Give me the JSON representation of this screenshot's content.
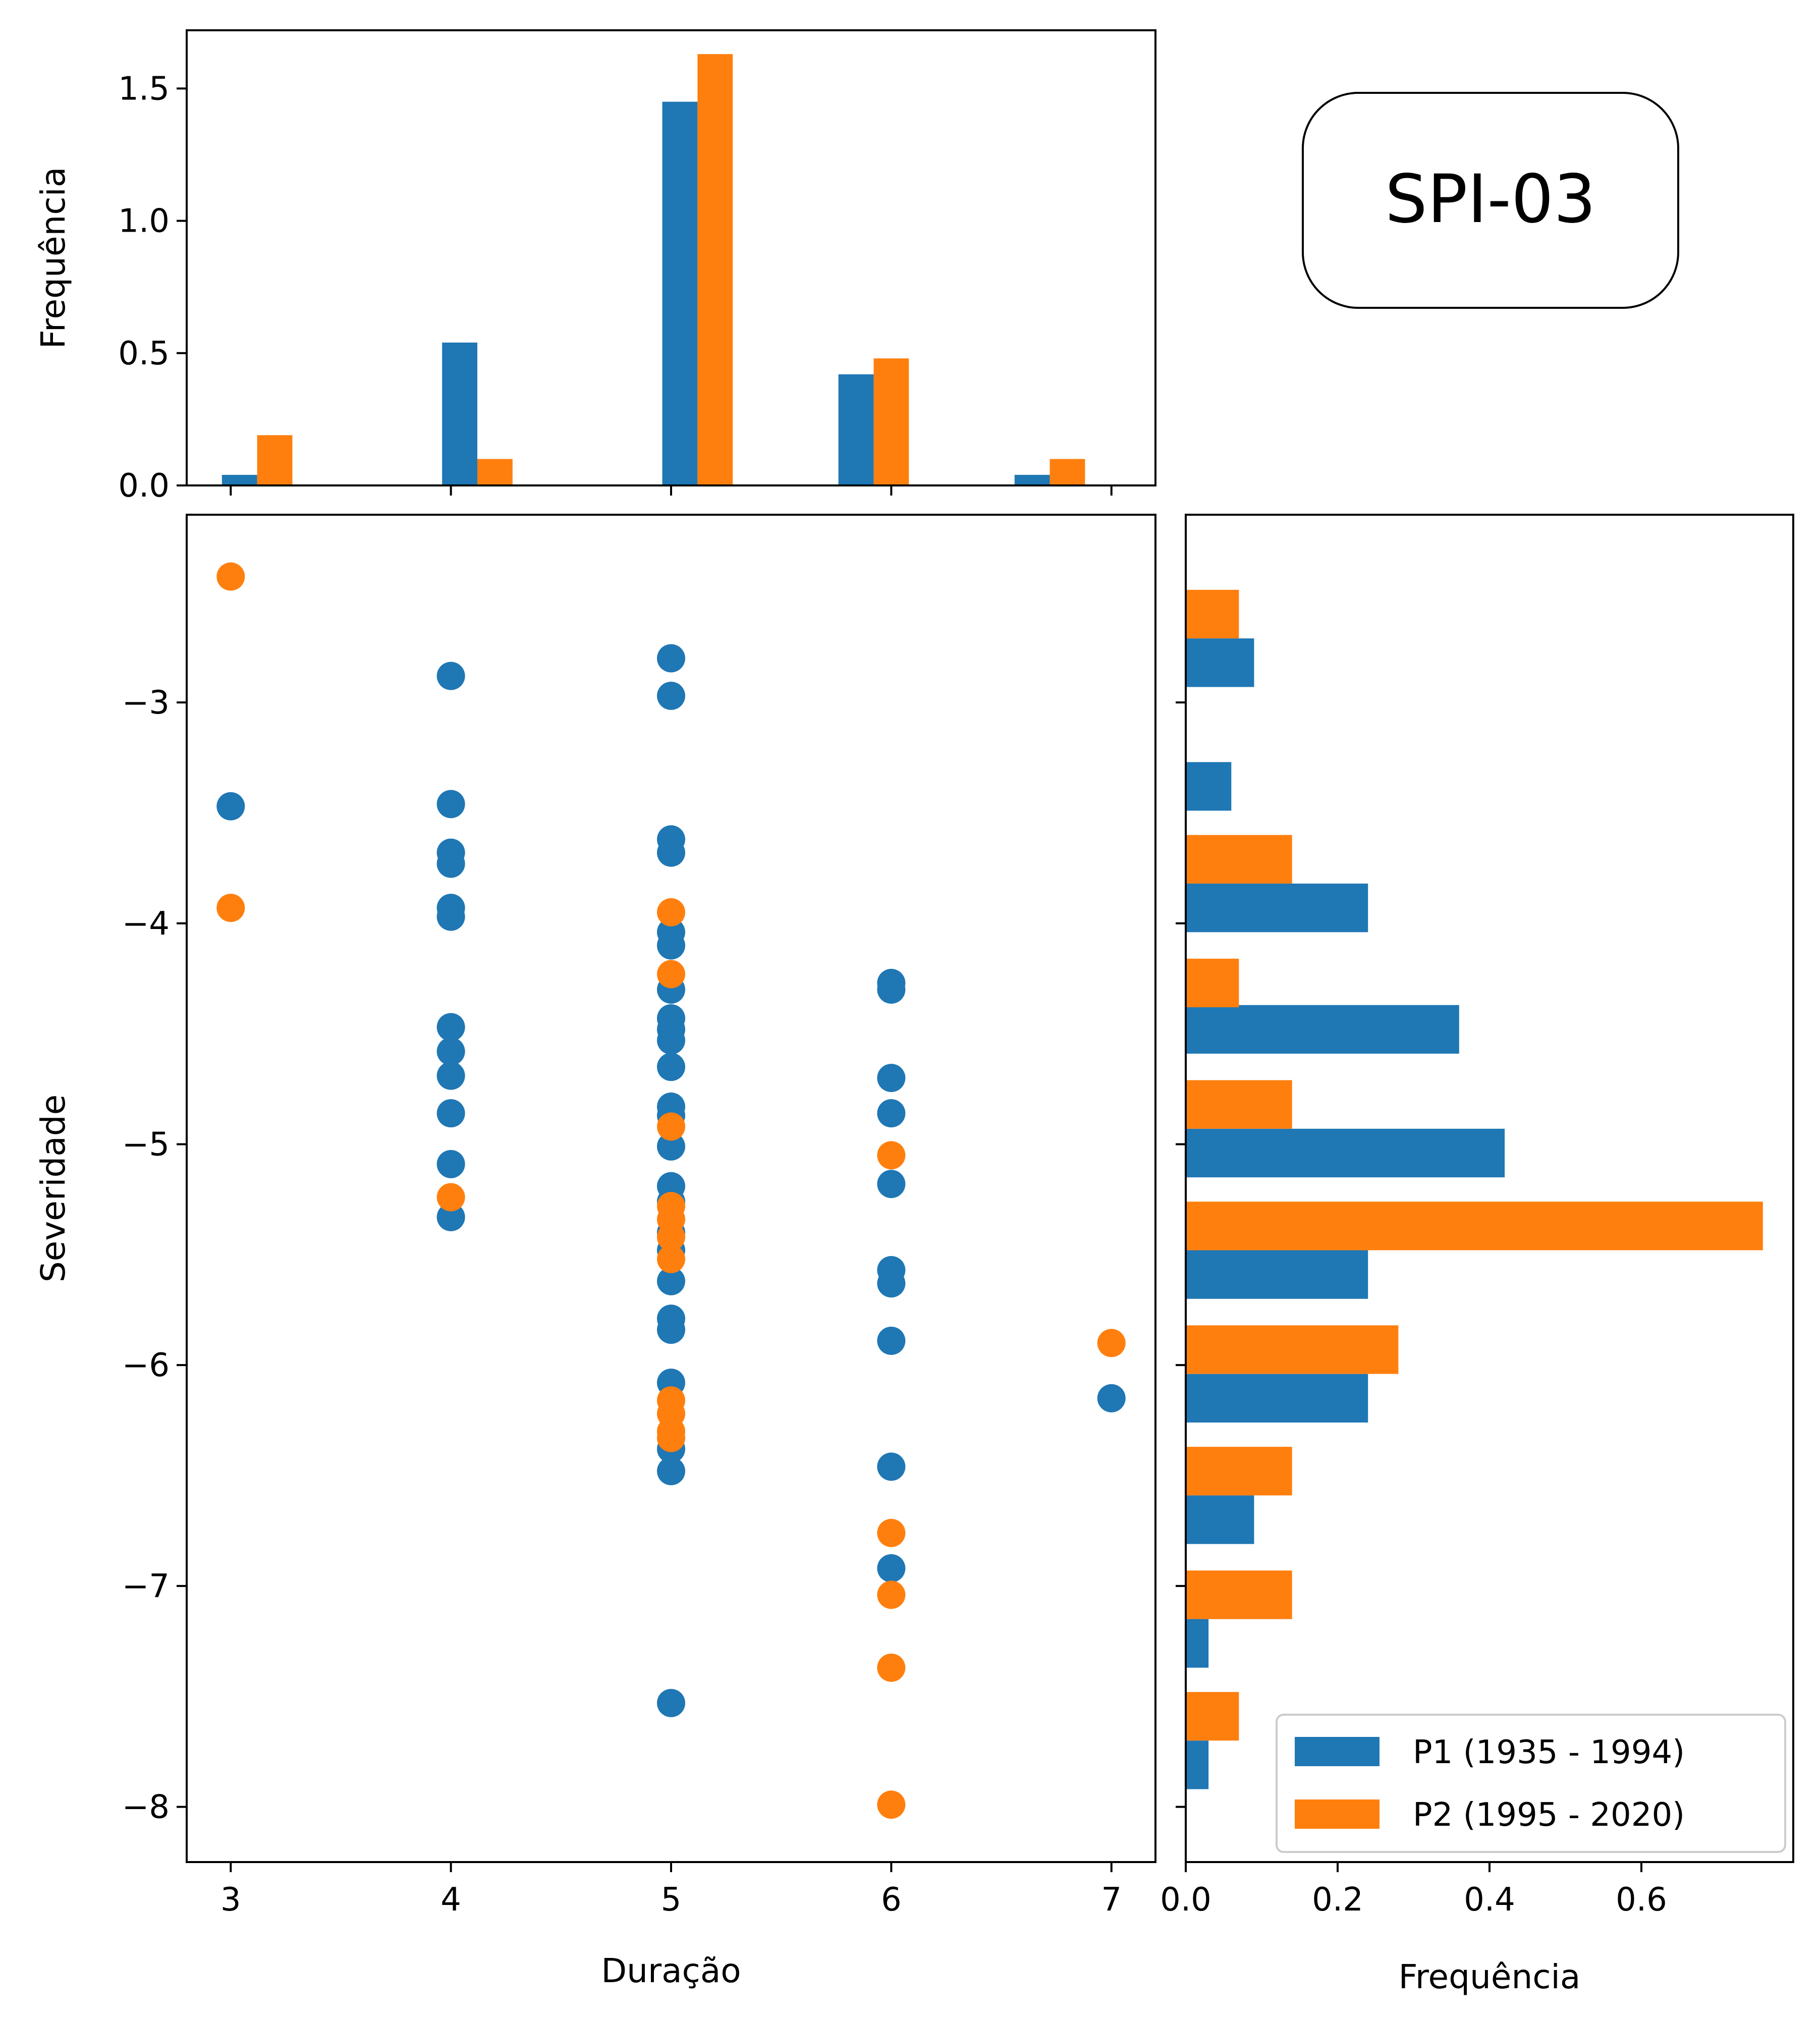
{
  "badge_label": "SPI-03",
  "colors": {
    "p1": "#1f77b4",
    "p2": "#ff7f0e"
  },
  "chart_data": [
    {
      "panel": "top-histogram",
      "type": "bar",
      "ylabel": "Frequência",
      "ylim": [
        0,
        1.72
      ],
      "yticks": [
        0.0,
        0.5,
        1.0,
        1.5
      ],
      "ytick_labels": [
        "0.0",
        "0.5",
        "1.0",
        "1.5"
      ],
      "xlim": [
        2.8,
        7.2
      ],
      "xticks": [
        3,
        4,
        5,
        6,
        7
      ],
      "bar_width": 0.16,
      "series": [
        {
          "name": "P1 (1935 - 1994)",
          "color": "#1f77b4",
          "x": [
            3.04,
            4.04,
            5.04,
            5.84,
            6.64
          ],
          "values": [
            0.04,
            0.54,
            1.45,
            0.42,
            0.04
          ]
        },
        {
          "name": "P2 (1995 - 2020)",
          "color": "#ff7f0e",
          "x": [
            3.2,
            4.2,
            5.2,
            6.0,
            6.8
          ],
          "values": [
            0.19,
            0.1,
            1.63,
            0.48,
            0.1
          ]
        }
      ]
    },
    {
      "panel": "scatter",
      "type": "scatter",
      "xlabel": "Duração",
      "ylabel": "Severidade",
      "xlim": [
        2.8,
        7.2
      ],
      "ylim": [
        -8.25,
        -2.15
      ],
      "xticks": [
        3,
        4,
        5,
        6,
        7
      ],
      "xtick_labels": [
        "3",
        "4",
        "5",
        "6",
        "7"
      ],
      "yticks": [
        -3,
        -4,
        -5,
        -6,
        -7,
        -8
      ],
      "ytick_labels": [
        "−3",
        "−4",
        "−5",
        "−6",
        "−7",
        "−8"
      ],
      "series": [
        {
          "name": "P1 (1935 - 1994)",
          "color": "#1f77b4",
          "points": [
            [
              3,
              -3.47
            ],
            [
              4,
              -2.88
            ],
            [
              4,
              -3.46
            ],
            [
              4,
              -3.68
            ],
            [
              4,
              -3.73
            ],
            [
              4,
              -3.93
            ],
            [
              4,
              -3.97
            ],
            [
              4,
              -4.47
            ],
            [
              4,
              -4.58
            ],
            [
              4,
              -4.69
            ],
            [
              4,
              -4.86
            ],
            [
              4,
              -5.09
            ],
            [
              4,
              -5.33
            ],
            [
              5,
              -2.8
            ],
            [
              5,
              -2.97
            ],
            [
              5,
              -3.62
            ],
            [
              5,
              -3.68
            ],
            [
              5,
              -4.04
            ],
            [
              5,
              -4.1
            ],
            [
              5,
              -4.3
            ],
            [
              5,
              -4.43
            ],
            [
              5,
              -4.48
            ],
            [
              5,
              -4.53
            ],
            [
              5,
              -4.65
            ],
            [
              5,
              -4.83
            ],
            [
              5,
              -4.87
            ],
            [
              5,
              -5.01
            ],
            [
              5,
              -5.19
            ],
            [
              5,
              -5.26
            ],
            [
              5,
              -5.4
            ],
            [
              5,
              -5.48
            ],
            [
              5,
              -5.62
            ],
            [
              5,
              -5.79
            ],
            [
              5,
              -5.84
            ],
            [
              5,
              -6.08
            ],
            [
              5,
              -6.38
            ],
            [
              5,
              -6.48
            ],
            [
              5,
              -7.53
            ],
            [
              6,
              -4.27
            ],
            [
              6,
              -4.3
            ],
            [
              6,
              -4.7
            ],
            [
              6,
              -4.86
            ],
            [
              6,
              -5.18
            ],
            [
              6,
              -5.57
            ],
            [
              6,
              -5.63
            ],
            [
              6,
              -5.89
            ],
            [
              6,
              -6.46
            ],
            [
              6,
              -6.92
            ],
            [
              7,
              -6.15
            ]
          ]
        },
        {
          "name": "P2 (1995 - 2020)",
          "color": "#ff7f0e",
          "points": [
            [
              3,
              -2.43
            ],
            [
              3,
              -3.93
            ],
            [
              4,
              -5.24
            ],
            [
              5,
              -3.95
            ],
            [
              5,
              -4.23
            ],
            [
              5,
              -4.92
            ],
            [
              5,
              -5.28
            ],
            [
              5,
              -5.34
            ],
            [
              5,
              -5.42
            ],
            [
              5,
              -5.52
            ],
            [
              5,
              -6.16
            ],
            [
              5,
              -6.22
            ],
            [
              5,
              -6.3
            ],
            [
              5,
              -6.33
            ],
            [
              6,
              -5.05
            ],
            [
              6,
              -6.76
            ],
            [
              6,
              -7.04
            ],
            [
              6,
              -7.37
            ],
            [
              6,
              -7.99
            ],
            [
              7,
              -5.9
            ]
          ]
        }
      ]
    },
    {
      "panel": "right-histogram",
      "type": "bar",
      "orientation": "horizontal",
      "xlabel": "Frequência",
      "xlim": [
        0,
        0.8
      ],
      "xticks": [
        0.0,
        0.2,
        0.4,
        0.6
      ],
      "xtick_labels": [
        "0.0",
        "0.2",
        "0.4",
        "0.6"
      ],
      "ylim": [
        -8.25,
        -2.15
      ],
      "yticks": [
        -3,
        -4,
        -5,
        -6,
        -7,
        -8
      ],
      "bar_height": 0.22,
      "series": [
        {
          "name": "P1 (1935 - 1994)",
          "color": "#1f77b4",
          "y": [
            -2.82,
            -3.38,
            -3.93,
            -4.48,
            -5.04,
            -5.59,
            -6.15,
            -6.7,
            -7.26,
            -7.81
          ],
          "values": [
            0.09,
            0.06,
            0.24,
            0.36,
            0.42,
            0.24,
            0.24,
            0.09,
            0.03,
            0.03
          ]
        },
        {
          "name": "P2 (1995 - 2020)",
          "color": "#ff7f0e",
          "y": [
            -2.6,
            -3.16,
            -3.71,
            -4.27,
            -4.82,
            -5.37,
            -5.93,
            -6.48,
            -7.04,
            -7.59
          ],
          "values": [
            0.07,
            0.0,
            0.14,
            0.07,
            0.14,
            0.76,
            0.28,
            0.14,
            0.14,
            0.07
          ]
        }
      ],
      "legend": {
        "position": "lower-right",
        "entries": [
          "P1 (1935 - 1994)",
          "P2 (1995 - 2020)"
        ]
      }
    }
  ]
}
